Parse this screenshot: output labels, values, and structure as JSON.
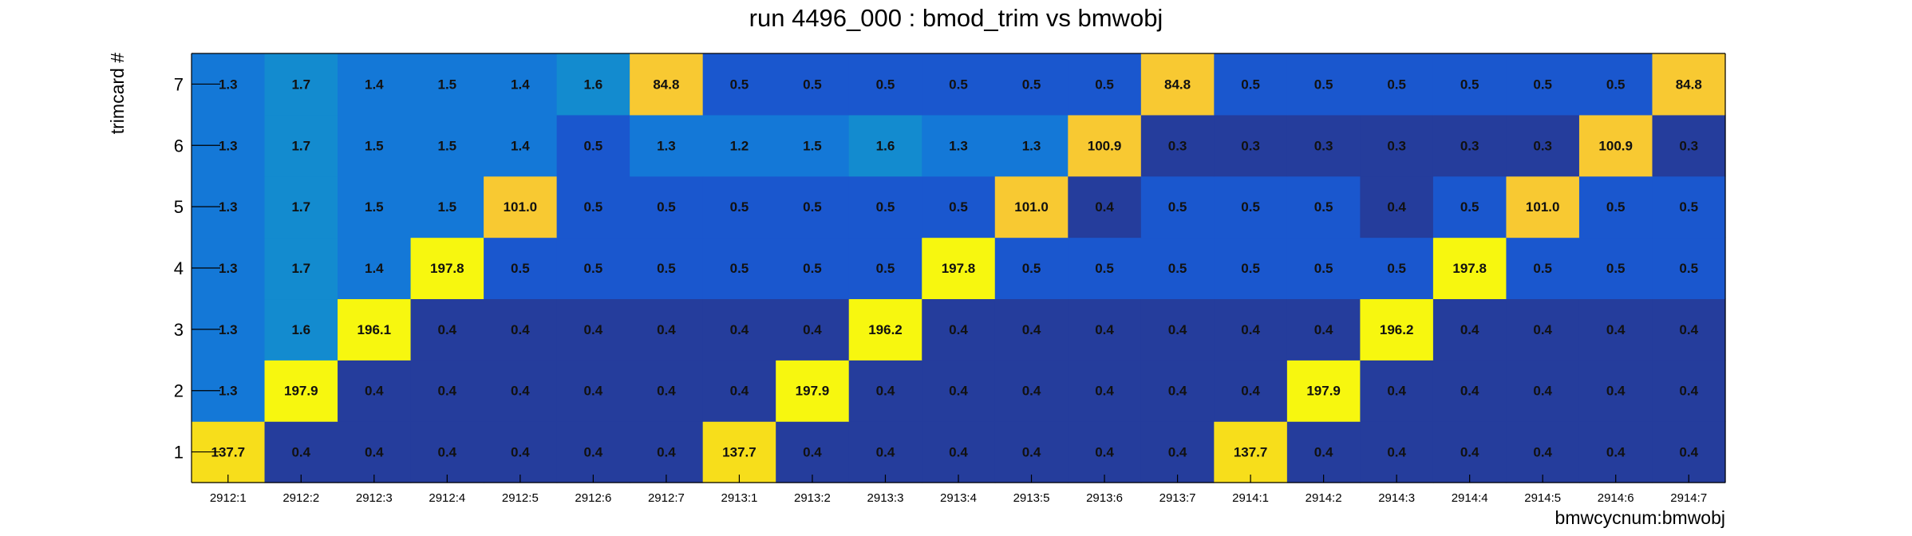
{
  "chart_data": {
    "type": "heatmap",
    "title": "run 4496_000 : bmod_trim vs bmwobj",
    "xlabel": "bmwcycnum:bmwobj",
    "ylabel": "trimcard #",
    "x_categories": [
      "2912:1",
      "2912:2",
      "2912:3",
      "2912:4",
      "2912:5",
      "2912:6",
      "2912:7",
      "2913:1",
      "2913:2",
      "2913:3",
      "2913:4",
      "2913:5",
      "2913:6",
      "2913:7",
      "2914:1",
      "2914:2",
      "2914:3",
      "2914:4",
      "2914:5",
      "2914:6",
      "2914:7"
    ],
    "y_categories": [
      "1",
      "2",
      "3",
      "4",
      "5",
      "6",
      "7"
    ],
    "values": [
      [
        "137.7",
        "0.4",
        "0.4",
        "0.4",
        "0.4",
        "0.4",
        "0.4",
        "137.7",
        "0.4",
        "0.4",
        "0.4",
        "0.4",
        "0.4",
        "0.4",
        "137.7",
        "0.4",
        "0.4",
        "0.4",
        "0.4",
        "0.4",
        "0.4"
      ],
      [
        "1.3",
        "197.9",
        "0.4",
        "0.4",
        "0.4",
        "0.4",
        "0.4",
        "0.4",
        "197.9",
        "0.4",
        "0.4",
        "0.4",
        "0.4",
        "0.4",
        "0.4",
        "197.9",
        "0.4",
        "0.4",
        "0.4",
        "0.4",
        "0.4"
      ],
      [
        "1.3",
        "1.6",
        "196.1",
        "0.4",
        "0.4",
        "0.4",
        "0.4",
        "0.4",
        "0.4",
        "196.2",
        "0.4",
        "0.4",
        "0.4",
        "0.4",
        "0.4",
        "0.4",
        "196.2",
        "0.4",
        "0.4",
        "0.4",
        "0.4"
      ],
      [
        "1.3",
        "1.7",
        "1.4",
        "197.8",
        "0.5",
        "0.5",
        "0.5",
        "0.5",
        "0.5",
        "0.5",
        "197.8",
        "0.5",
        "0.5",
        "0.5",
        "0.5",
        "0.5",
        "0.5",
        "197.8",
        "0.5",
        "0.5",
        "0.5"
      ],
      [
        "1.3",
        "1.7",
        "1.5",
        "1.5",
        "101.0",
        "0.5",
        "0.5",
        "0.5",
        "0.5",
        "0.5",
        "0.5",
        "101.0",
        "0.4",
        "0.5",
        "0.5",
        "0.5",
        "0.4",
        "0.5",
        "101.0",
        "0.5",
        "0.5"
      ],
      [
        "1.3",
        "1.7",
        "1.5",
        "1.5",
        "1.4",
        "0.5",
        "1.3",
        "1.2",
        "1.5",
        "1.6",
        "1.3",
        "1.3",
        "100.9",
        "0.3",
        "0.3",
        "0.3",
        "0.3",
        "0.3",
        "0.3",
        "100.9",
        "0.3"
      ],
      [
        "1.3",
        "1.7",
        "1.4",
        "1.5",
        "1.4",
        "1.6",
        "84.8",
        "0.5",
        "0.5",
        "0.5",
        "0.5",
        "0.5",
        "0.5",
        "84.8",
        "0.5",
        "0.5",
        "0.5",
        "0.5",
        "0.5",
        "0.5",
        "84.8"
      ]
    ],
    "grid": false,
    "legend": "none"
  }
}
